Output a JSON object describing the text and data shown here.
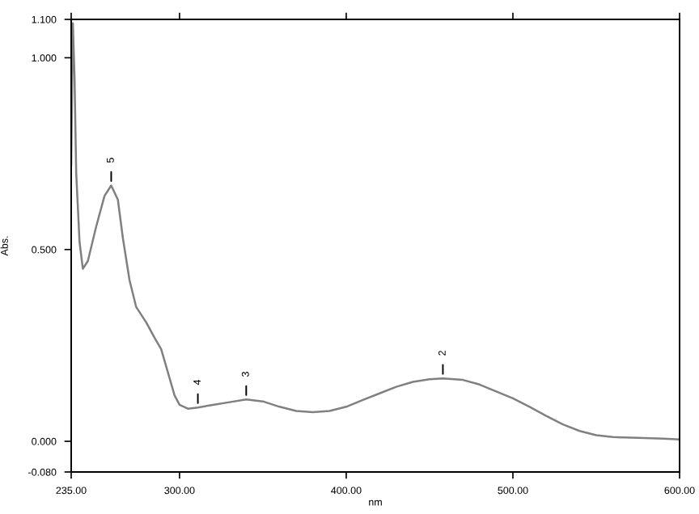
{
  "chart_data": {
    "type": "line",
    "xlabel": "nm",
    "ylabel": "Abs.",
    "color": "#808080",
    "x": [
      235,
      236,
      237,
      238,
      240,
      242,
      245,
      250,
      255,
      259,
      263,
      266,
      270,
      274,
      280,
      285,
      289,
      293,
      297,
      300,
      305,
      311,
      320,
      330,
      340,
      350,
      360,
      370,
      380,
      390,
      400,
      410,
      420,
      430,
      440,
      450,
      458,
      470,
      480,
      490,
      500,
      510,
      520,
      530,
      540,
      550,
      560,
      575,
      590,
      600
    ],
    "values": [
      0.72,
      1.09,
      0.95,
      0.7,
      0.52,
      0.45,
      0.47,
      0.56,
      0.64,
      0.667,
      0.63,
      0.53,
      0.42,
      0.35,
      0.31,
      0.27,
      0.24,
      0.18,
      0.12,
      0.095,
      0.085,
      0.088,
      0.095,
      0.102,
      0.109,
      0.104,
      0.09,
      0.079,
      0.076,
      0.079,
      0.09,
      0.108,
      0.125,
      0.142,
      0.155,
      0.162,
      0.164,
      0.16,
      0.148,
      0.13,
      0.112,
      0.09,
      0.066,
      0.044,
      0.027,
      0.016,
      0.011,
      0.009,
      0.007,
      0.005
    ],
    "xlim": [
      235,
      600
    ],
    "ylim": [
      -0.08,
      1.1
    ],
    "xticks": [
      {
        "value": 235,
        "label": "235.00"
      },
      {
        "value": 300,
        "label": "300.00"
      },
      {
        "value": 400,
        "label": "400.00"
      },
      {
        "value": 500,
        "label": "500.00"
      },
      {
        "value": 600,
        "label": "600.00"
      }
    ],
    "yticks": [
      {
        "value": -0.08,
        "label": "-0.080"
      },
      {
        "value": 0,
        "label": "0.000"
      },
      {
        "value": 0.5,
        "label": "0.500"
      },
      {
        "value": 1.0,
        "label": "1.000"
      },
      {
        "value": 1.1,
        "label": "1.100"
      }
    ],
    "annotations": [
      {
        "text": "5",
        "x": 259,
        "y": 0.667
      },
      {
        "text": "4",
        "x": 311,
        "y": 0.088
      },
      {
        "text": "3",
        "x": 340,
        "y": 0.109
      },
      {
        "text": "2",
        "x": 458,
        "y": 0.164
      }
    ],
    "grid": false,
    "legend": false
  }
}
